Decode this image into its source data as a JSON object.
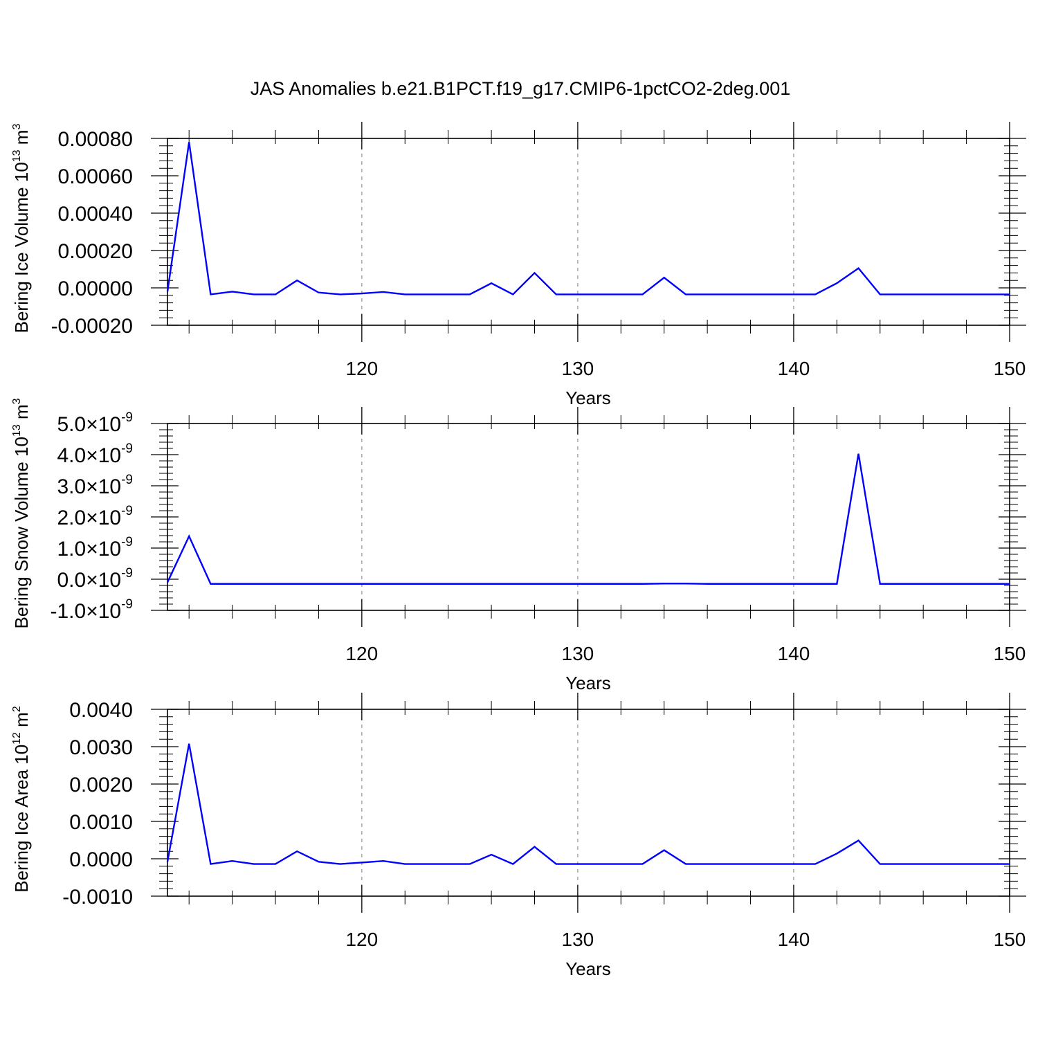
{
  "chart_data": {
    "title": "JAS Anomalies b.e21.B1PCT.f19_g17.CMIP6-1pctCO2-2deg.001",
    "line_color": "#0000ff",
    "panels": [
      {
        "type": "line",
        "ylabel_prefix": "Bering Ice Volume 10",
        "ylabel_exp": "13",
        "ylabel_unit": " m",
        "ylabel_unit_exp": "3",
        "xlabel": "Years",
        "xlim": [
          111,
          150
        ],
        "ylim": [
          -0.0002,
          0.0008
        ],
        "yticks": [
          {
            "v": -0.0002,
            "t": "-0.00020"
          },
          {
            "v": 0.0,
            "t": "0.00000"
          },
          {
            "v": 0.0002,
            "t": "0.00020"
          },
          {
            "v": 0.0004,
            "t": "0.00040"
          },
          {
            "v": 0.0006,
            "t": "0.00060"
          },
          {
            "v": 0.0008,
            "t": "0.00080"
          }
        ],
        "xticks": [
          {
            "v": 120,
            "t": "120"
          },
          {
            "v": 130,
            "t": "130"
          },
          {
            "v": 140,
            "t": "140"
          },
          {
            "v": 150,
            "t": "150"
          }
        ],
        "x": [
          111,
          112,
          113,
          114,
          115,
          116,
          117,
          118,
          119,
          120,
          121,
          122,
          123,
          124,
          125,
          126,
          127,
          128,
          129,
          130,
          131,
          132,
          133,
          134,
          135,
          136,
          137,
          138,
          139,
          140,
          141,
          142,
          143,
          144,
          145,
          146,
          147,
          148,
          149,
          150
        ],
        "values": [
          -2e-05,
          0.00078,
          -3.5e-05,
          -2e-05,
          -3.5e-05,
          -3.5e-05,
          4e-05,
          -2.5e-05,
          -3.5e-05,
          -3e-05,
          -2.2e-05,
          -3.5e-05,
          -3.5e-05,
          -3.5e-05,
          -3.5e-05,
          2.5e-05,
          -3.5e-05,
          8e-05,
          -3.5e-05,
          -3.5e-05,
          -3.5e-05,
          -3.5e-05,
          -3.5e-05,
          5.5e-05,
          -3.5e-05,
          -3.5e-05,
          -3.5e-05,
          -3.5e-05,
          -3.5e-05,
          -3.5e-05,
          -3.5e-05,
          2.5e-05,
          0.000105,
          -3.5e-05,
          -3.5e-05,
          -3.5e-05,
          -3.5e-05,
          -3.5e-05,
          -3.5e-05,
          -3.5e-05
        ]
      },
      {
        "type": "line",
        "ylabel_prefix": "Bering Snow Volume 10",
        "ylabel_exp": "13",
        "ylabel_unit": " m",
        "ylabel_unit_exp": "3",
        "xlabel": "Years",
        "xlim": [
          111,
          150
        ],
        "ylim": [
          -1e-09,
          5e-09
        ],
        "yticks": [
          {
            "v": -1e-09,
            "t": "-1.0",
            "mul": "×10",
            "exp": "-9"
          },
          {
            "v": 0.0,
            "t": "0.0",
            "mul": "×10",
            "exp": "-9"
          },
          {
            "v": 1e-09,
            "t": "1.0",
            "mul": "×10",
            "exp": "-9"
          },
          {
            "v": 2e-09,
            "t": "2.0",
            "mul": "×10",
            "exp": "-9"
          },
          {
            "v": 3e-09,
            "t": "3.0",
            "mul": "×10",
            "exp": "-9"
          },
          {
            "v": 4e-09,
            "t": "4.0",
            "mul": "×10",
            "exp": "-9"
          },
          {
            "v": 5e-09,
            "t": "5.0",
            "mul": "×10",
            "exp": "-9"
          }
        ],
        "xticks": [
          {
            "v": 120,
            "t": "120"
          },
          {
            "v": 130,
            "t": "130"
          },
          {
            "v": 140,
            "t": "140"
          },
          {
            "v": 150,
            "t": "150"
          }
        ],
        "x": [
          111,
          112,
          113,
          114,
          115,
          116,
          117,
          118,
          119,
          120,
          121,
          122,
          123,
          124,
          125,
          126,
          127,
          128,
          129,
          130,
          131,
          132,
          133,
          134,
          135,
          136,
          137,
          138,
          139,
          140,
          141,
          142,
          143,
          144,
          145,
          146,
          147,
          148,
          149,
          150
        ],
        "values": [
          -1e-10,
          1.38e-09,
          -1.5e-10,
          -1.5e-10,
          -1.5e-10,
          -1.5e-10,
          -1.5e-10,
          -1.5e-10,
          -1.5e-10,
          -1.5e-10,
          -1.5e-10,
          -1.5e-10,
          -1.5e-10,
          -1.5e-10,
          -1.5e-10,
          -1.5e-10,
          -1.5e-10,
          -1.5e-10,
          -1.5e-10,
          -1.5e-10,
          -1.5e-10,
          -1.5e-10,
          -1.5e-10,
          -1.4e-10,
          -1.4e-10,
          -1.5e-10,
          -1.5e-10,
          -1.5e-10,
          -1.5e-10,
          -1.5e-10,
          -1.5e-10,
          -1.5e-10,
          4.03e-09,
          -1.5e-10,
          -1.5e-10,
          -1.5e-10,
          -1.5e-10,
          -1.5e-10,
          -1.5e-10,
          -1.5e-10
        ]
      },
      {
        "type": "line",
        "ylabel_prefix": "Bering Ice Area 10",
        "ylabel_exp": "12",
        "ylabel_unit": " m",
        "ylabel_unit_exp": "2",
        "xlabel": "Years",
        "xlim": [
          111,
          150
        ],
        "ylim": [
          -0.001,
          0.004
        ],
        "yticks": [
          {
            "v": -0.001,
            "t": "-0.0010"
          },
          {
            "v": 0.0,
            "t": "0.0000"
          },
          {
            "v": 0.001,
            "t": "0.0010"
          },
          {
            "v": 0.002,
            "t": "0.0020"
          },
          {
            "v": 0.003,
            "t": "0.0030"
          },
          {
            "v": 0.004,
            "t": "0.0040"
          }
        ],
        "xticks": [
          {
            "v": 120,
            "t": "120"
          },
          {
            "v": 130,
            "t": "130"
          },
          {
            "v": 140,
            "t": "140"
          },
          {
            "v": 150,
            "t": "150"
          }
        ],
        "x": [
          111,
          112,
          113,
          114,
          115,
          116,
          117,
          118,
          119,
          120,
          121,
          122,
          123,
          124,
          125,
          126,
          127,
          128,
          129,
          130,
          131,
          132,
          133,
          134,
          135,
          136,
          137,
          138,
          139,
          140,
          141,
          142,
          143,
          144,
          145,
          146,
          147,
          148,
          149,
          150
        ],
        "values": [
          -8e-05,
          0.00308,
          -0.00014,
          -6e-05,
          -0.00014,
          -0.00014,
          0.0002,
          -8e-05,
          -0.00014,
          -0.0001,
          -6e-05,
          -0.00014,
          -0.00014,
          -0.00014,
          -0.00014,
          0.00011,
          -0.00014,
          0.00032,
          -0.00014,
          -0.00014,
          -0.00014,
          -0.00014,
          -0.00014,
          0.00023,
          -0.00014,
          -0.00014,
          -0.00014,
          -0.00014,
          -0.00014,
          -0.00014,
          -0.00014,
          0.00014,
          0.00049,
          -0.00014,
          -0.00014,
          -0.00014,
          -0.00014,
          -0.00014,
          -0.00014,
          -0.00014
        ]
      }
    ]
  }
}
